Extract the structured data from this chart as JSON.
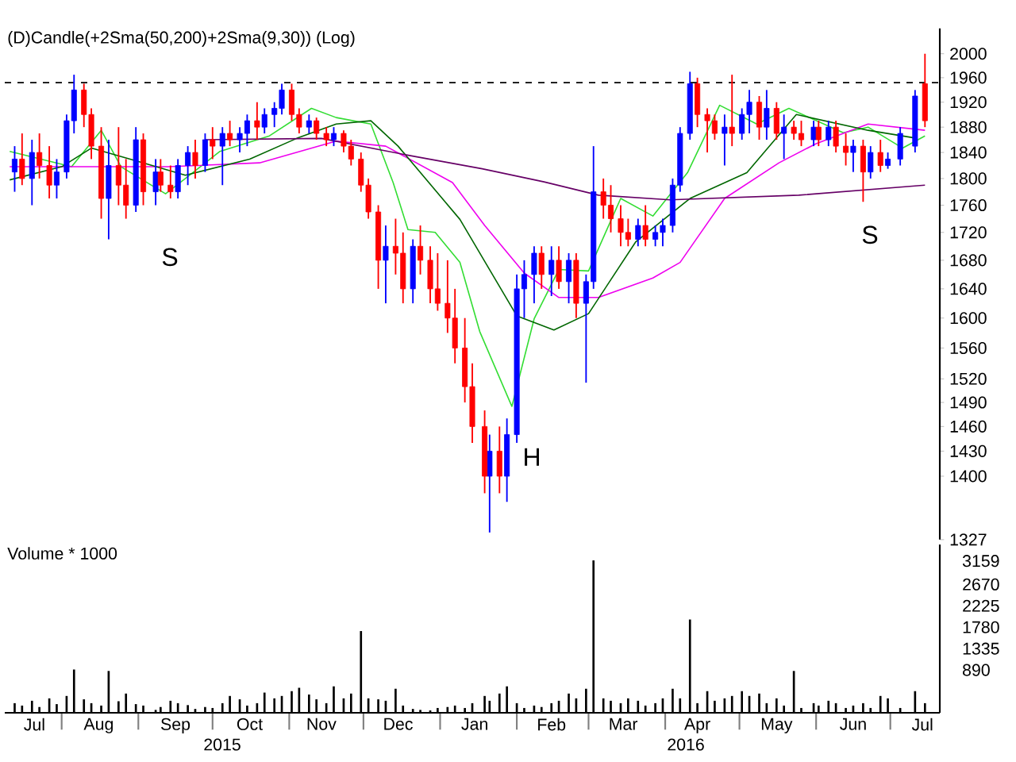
{
  "chart_data": [
    {
      "type": "candlestick",
      "title": "(D)Candle(+2Sma(50,200)+2Sma(9,30)) (Log)",
      "log": true,
      "tick_labels": "y",
      "xlim": [
        "2015-07-09",
        "2016-07-21"
      ],
      "ylim": [
        1327,
        2043
      ],
      "yticks": [
        1327,
        1400,
        1430,
        1460,
        1490,
        1520,
        1560,
        1600,
        1640,
        1680,
        1720,
        1760,
        1800,
        1840,
        1880,
        1920,
        1960,
        2000
      ],
      "ref_lines": [
        {
          "axis": "y",
          "value": 1952,
          "line_style": "dashed",
          "color": "#000000"
        }
      ],
      "annotations": [
        "S",
        "H",
        "S"
      ],
      "series": [
        {
          "type": "line",
          "color": "#33dd33",
          "x": [
            "2015-07-11",
            "2015-08-05",
            "2015-08-17",
            "2015-08-25",
            "2015-09-12",
            "2015-09-20",
            "2015-10-04",
            "2015-10-24",
            "2015-11-10",
            "2015-11-20",
            "2015-12-04",
            "2015-12-13",
            "2015-12-19",
            "2015-12-30",
            "2016-01-09",
            "2016-01-17",
            "2016-01-30",
            "2016-02-08",
            "2016-02-18",
            "2016-03-01",
            "2016-03-14",
            "2016-03-27",
            "2016-04-10",
            "2016-04-23",
            "2016-05-08",
            "2016-05-21",
            "2016-06-12",
            "2016-06-22",
            "2016-07-06",
            "2016-07-15"
          ],
          "values": [
            1842,
            1818,
            1875,
            1818,
            1777,
            1800,
            1842,
            1866,
            1910,
            1895,
            1885,
            1794,
            1724,
            1720,
            1677,
            1582,
            1485,
            1599,
            1667,
            1665,
            1770,
            1744,
            1809,
            1915,
            1885,
            1910,
            1871,
            1880,
            1847,
            1866
          ]
        },
        {
          "type": "line",
          "color": "#ee00ee",
          "x": [
            "2015-07-11",
            "2015-09-13",
            "2015-10-20",
            "2015-11-20",
            "2015-12-10",
            "2016-01-06",
            "2016-01-19",
            "2016-02-04",
            "2016-02-18",
            "2016-03-05",
            "2016-03-27",
            "2016-04-07",
            "2016-04-25",
            "2016-05-17",
            "2016-06-01",
            "2016-06-22",
            "2016-07-15"
          ],
          "values": [
            1818,
            1818,
            1824,
            1858,
            1850,
            1794,
            1730,
            1662,
            1628,
            1628,
            1655,
            1677,
            1770,
            1824,
            1854,
            1885,
            1875
          ]
        },
        {
          "type": "line",
          "color": "#006600",
          "x": [
            "2015-07-11",
            "2015-08-01",
            "2015-08-13",
            "2015-09-03",
            "2015-09-20",
            "2015-10-16",
            "2015-11-04",
            "2015-11-20",
            "2015-12-04",
            "2015-12-15",
            "2016-01-09",
            "2016-02-01",
            "2016-02-16",
            "2016-03-01",
            "2016-03-20",
            "2016-04-11",
            "2016-05-04",
            "2016-05-24",
            "2016-06-22",
            "2016-07-12"
          ],
          "values": [
            1798,
            1818,
            1847,
            1824,
            1805,
            1830,
            1862,
            1885,
            1890,
            1850,
            1739,
            1603,
            1584,
            1606,
            1706,
            1770,
            1809,
            1900,
            1875,
            1862
          ]
        },
        {
          "type": "line",
          "color": "#660066",
          "x": [
            "2015-09-28",
            "2015-11-14",
            "2015-12-20",
            "2016-01-18",
            "2016-02-12",
            "2016-03-05",
            "2016-04-03",
            "2016-05-25",
            "2016-07-15"
          ],
          "values": [
            1860,
            1862,
            1835,
            1815,
            1795,
            1775,
            1768,
            1775,
            1790
          ]
        },
        {
          "color": "#0000ff",
          "x": [
            "2015-07-13",
            "2015-07-20",
            "2015-07-30",
            "2015-08-03",
            "2015-08-06",
            "2015-08-20",
            "2015-08-31",
            "2015-09-08",
            "2015-09-17",
            "2015-09-21",
            "2015-09-28",
            "2015-10-05",
            "2015-10-12",
            "2015-10-15",
            "2015-10-22",
            "2015-10-26",
            "2015-10-29",
            "2015-11-09",
            "2015-11-19",
            "2015-12-10",
            "2015-12-21",
            "2016-01-21",
            "2016-01-28",
            "2016-02-01",
            "2016-02-04",
            "2016-02-08",
            "2016-02-15",
            "2016-02-22",
            "2016-02-29",
            "2016-03-03",
            "2016-03-21",
            "2016-03-28",
            "2016-03-31",
            "2016-04-04",
            "2016-04-07",
            "2016-04-11",
            "2016-04-25",
            "2016-05-02",
            "2016-05-05",
            "2016-05-12",
            "2016-05-19",
            "2016-05-31",
            "2016-06-06",
            "2016-06-16",
            "2016-06-23",
            "2016-06-30",
            "2016-07-05",
            "2016-07-11"
          ],
          "ohlc": [
            [
              1810,
              1850,
              1780,
              1830
            ],
            [
              1800,
              1860,
              1760,
              1840
            ],
            [
              1790,
              1830,
              1770,
              1810
            ],
            [
              1810,
              1900,
              1800,
              1890
            ],
            [
              1890,
              1965,
              1870,
              1940
            ],
            [
              1770,
              1860,
              1710,
              1820
            ],
            [
              1760,
              1880,
              1750,
              1860
            ],
            [
              1780,
              1830,
              1760,
              1810
            ],
            [
              1780,
              1830,
              1770,
              1820
            ],
            [
              1820,
              1850,
              1790,
              1840
            ],
            [
              1820,
              1870,
              1810,
              1860
            ],
            [
              1850,
              1880,
              1790,
              1870
            ],
            [
              1860,
              1880,
              1840,
              1870
            ],
            [
              1870,
              1900,
              1850,
              1890
            ],
            [
              1880,
              1910,
              1870,
              1900
            ],
            [
              1900,
              1920,
              1880,
              1910
            ],
            [
              1910,
              1950,
              1900,
              1940
            ],
            [
              1880,
              1900,
              1870,
              1890
            ],
            [
              1860,
              1880,
              1850,
              1870
            ],
            [
              1680,
              1730,
              1620,
              1700
            ],
            [
              1640,
              1710,
              1620,
              1700
            ],
            [
              1400,
              1450,
              1335,
              1430
            ],
            [
              1400,
              1470,
              1370,
              1450
            ],
            [
              1450,
              1660,
              1440,
              1640
            ],
            [
              1640,
              1680,
              1600,
              1660
            ],
            [
              1660,
              1700,
              1620,
              1690
            ],
            [
              1660,
              1700,
              1630,
              1680
            ],
            [
              1650,
              1690,
              1620,
              1680
            ],
            [
              1620,
              1660,
              1515,
              1650
            ],
            [
              1650,
              1850,
              1640,
              1780
            ],
            [
              1710,
              1740,
              1700,
              1730
            ],
            [
              1710,
              1730,
              1700,
              1720
            ],
            [
              1720,
              1740,
              1700,
              1730
            ],
            [
              1730,
              1800,
              1720,
              1790
            ],
            [
              1790,
              1880,
              1780,
              1870
            ],
            [
              1870,
              1970,
              1860,
              1950
            ],
            [
              1870,
              1900,
              1820,
              1880
            ],
            [
              1870,
              1910,
              1860,
              1900
            ],
            [
              1900,
              1940,
              1870,
              1920
            ],
            [
              1880,
              1940,
              1860,
              1910
            ],
            [
              1870,
              1900,
              1830,
              1880
            ],
            [
              1860,
              1890,
              1850,
              1880
            ],
            [
              1860,
              1890,
              1850,
              1880
            ],
            [
              1840,
              1860,
              1810,
              1850
            ],
            [
              1810,
              1850,
              1800,
              1840
            ],
            [
              1820,
              1840,
              1815,
              1830
            ],
            [
              1830,
              1880,
              1820,
              1870
            ],
            [
              1850,
              1940,
              1840,
              1930
            ]
          ]
        },
        {
          "color": "#ff0000",
          "x": [
            "2015-07-16",
            "2015-07-23",
            "2015-07-27",
            "2015-08-10",
            "2015-08-13",
            "2015-08-17",
            "2015-08-24",
            "2015-08-27",
            "2015-09-03",
            "2015-09-10",
            "2015-09-14",
            "2015-09-24",
            "2015-10-01",
            "2015-10-08",
            "2015-10-19",
            "2015-11-02",
            "2015-11-05",
            "2015-11-12",
            "2015-11-16",
            "2015-11-23",
            "2015-11-26",
            "2015-11-30",
            "2015-12-03",
            "2015-12-07",
            "2015-12-14",
            "2015-12-17",
            "2015-12-24",
            "2015-12-28",
            "2015-12-31",
            "2016-01-04",
            "2016-01-07",
            "2016-01-11",
            "2016-01-14",
            "2016-01-19",
            "2016-01-25",
            "2016-02-11",
            "2016-02-18",
            "2016-02-25",
            "2016-03-07",
            "2016-03-10",
            "2016-03-14",
            "2016-03-17",
            "2016-03-24",
            "2016-04-14",
            "2016-04-18",
            "2016-04-21",
            "2016-04-28",
            "2016-05-09",
            "2016-05-16",
            "2016-05-23",
            "2016-05-26",
            "2016-06-02",
            "2016-06-09",
            "2016-06-13",
            "2016-06-20",
            "2016-06-27",
            "2016-07-15"
          ],
          "ohlc": [
            [
              1830,
              1870,
              1790,
              1800
            ],
            [
              1840,
              1870,
              1800,
              1820
            ],
            [
              1820,
              1850,
              1770,
              1790
            ],
            [
              1940,
              1950,
              1880,
              1900
            ],
            [
              1900,
              1910,
              1830,
              1850
            ],
            [
              1850,
              1880,
              1740,
              1770
            ],
            [
              1820,
              1880,
              1760,
              1790
            ],
            [
              1790,
              1830,
              1740,
              1760
            ],
            [
              1860,
              1870,
              1760,
              1780
            ],
            [
              1810,
              1830,
              1780,
              1790
            ],
            [
              1790,
              1820,
              1770,
              1780
            ],
            [
              1840,
              1860,
              1800,
              1820
            ],
            [
              1860,
              1880,
              1830,
              1850
            ],
            [
              1870,
              1890,
              1850,
              1860
            ],
            [
              1890,
              1920,
              1860,
              1880
            ],
            [
              1940,
              1950,
              1890,
              1900
            ],
            [
              1900,
              1910,
              1870,
              1880
            ],
            [
              1890,
              1895,
              1860,
              1870
            ],
            [
              1870,
              1880,
              1850,
              1860
            ],
            [
              1870,
              1875,
              1840,
              1850
            ],
            [
              1850,
              1860,
              1820,
              1830
            ],
            [
              1830,
              1840,
              1780,
              1790
            ],
            [
              1790,
              1800,
              1740,
              1750
            ],
            [
              1750,
              1760,
              1640,
              1680
            ],
            [
              1700,
              1740,
              1660,
              1690
            ],
            [
              1690,
              1720,
              1620,
              1640
            ],
            [
              1700,
              1730,
              1660,
              1680
            ],
            [
              1680,
              1700,
              1620,
              1640
            ],
            [
              1640,
              1690,
              1610,
              1620
            ],
            [
              1620,
              1680,
              1580,
              1600
            ],
            [
              1600,
              1640,
              1540,
              1560
            ],
            [
              1560,
              1600,
              1490,
              1510
            ],
            [
              1510,
              1540,
              1440,
              1460
            ],
            [
              1460,
              1480,
              1380,
              1400
            ],
            [
              1430,
              1460,
              1380,
              1400
            ],
            [
              1690,
              1700,
              1640,
              1660
            ],
            [
              1680,
              1700,
              1640,
              1650
            ],
            [
              1680,
              1690,
              1600,
              1620
            ],
            [
              1780,
              1800,
              1740,
              1760
            ],
            [
              1760,
              1790,
              1720,
              1740
            ],
            [
              1740,
              1760,
              1700,
              1720
            ],
            [
              1720,
              1740,
              1700,
              1710
            ],
            [
              1730,
              1760,
              1700,
              1710
            ],
            [
              1950,
              1960,
              1880,
              1900
            ],
            [
              1900,
              1910,
              1840,
              1890
            ],
            [
              1890,
              1900,
              1860,
              1870
            ],
            [
              1880,
              1965,
              1850,
              1870
            ],
            [
              1920,
              1930,
              1860,
              1880
            ],
            [
              1910,
              1920,
              1860,
              1870
            ],
            [
              1880,
              1890,
              1860,
              1870
            ],
            [
              1870,
              1890,
              1850,
              1860
            ],
            [
              1880,
              1890,
              1850,
              1860
            ],
            [
              1880,
              1890,
              1840,
              1850
            ],
            [
              1850,
              1870,
              1820,
              1840
            ],
            [
              1850,
              1860,
              1765,
              1810
            ],
            [
              1840,
              1860,
              1810,
              1820
            ],
            [
              1950,
              2000,
              1880,
              1890
            ]
          ]
        }
      ]
    },
    {
      "type": "bar",
      "title": "Volume * 1000",
      "color": "#000000",
      "xlim": [
        "2015-07-09",
        "2016-07-21"
      ],
      "ylim": [
        0,
        3500
      ],
      "yticks": [
        890,
        1335,
        1780,
        2225,
        2670,
        3159
      ],
      "xticks": [
        {
          "value": "2015-08-01",
          "label": null
        },
        {
          "value": "2015-09-01",
          "label": null
        },
        {
          "value": "2015-10-01",
          "label": null
        },
        {
          "value": "2015-11-01",
          "label": null
        },
        {
          "value": "2015-12-01",
          "label": null
        },
        {
          "value": "2016-01-01",
          "label": null
        },
        {
          "value": "2016-02-01",
          "label": null
        },
        {
          "value": "2016-03-01",
          "label": null
        },
        {
          "value": "2016-04-01",
          "label": null
        },
        {
          "value": "2016-05-01",
          "label": null
        },
        {
          "value": "2016-06-01",
          "label": null
        },
        {
          "value": "2016-07-01",
          "label": null
        },
        {
          "value": "2015-07-21",
          "label": "Jul"
        },
        {
          "value": "2015-08-16",
          "label": "Aug"
        },
        {
          "value": "2015-09-16",
          "label": "Sep"
        },
        {
          "value": "2015-10-16",
          "label": "Oct"
        },
        {
          "value": "2015-11-14",
          "label": "Nov"
        },
        {
          "value": "2015-12-15",
          "label": "Dec"
        },
        {
          "value": "2016-01-15",
          "label": "Jan"
        },
        {
          "value": "2016-02-15",
          "label": "Feb"
        },
        {
          "value": "2016-03-15",
          "label": "Mar"
        },
        {
          "value": "2016-04-14",
          "label": "Apr"
        },
        {
          "value": "2016-05-16",
          "label": "May"
        },
        {
          "value": "2016-06-16",
          "label": "Jun"
        },
        {
          "value": "2016-07-14",
          "label": "Jul"
        }
      ],
      "annotations": [
        "2015",
        "2016"
      ],
      "x": [
        "2015-07-13",
        "2015-07-16",
        "2015-07-20",
        "2015-07-23",
        "2015-07-27",
        "2015-07-30",
        "2015-08-03",
        "2015-08-06",
        "2015-08-10",
        "2015-08-13",
        "2015-08-17",
        "2015-08-20",
        "2015-08-24",
        "2015-08-27",
        "2015-08-31",
        "2015-09-03",
        "2015-09-08",
        "2015-09-10",
        "2015-09-14",
        "2015-09-17",
        "2015-09-21",
        "2015-09-24",
        "2015-09-28",
        "2015-10-01",
        "2015-10-05",
        "2015-10-08",
        "2015-10-12",
        "2015-10-15",
        "2015-10-19",
        "2015-10-22",
        "2015-10-26",
        "2015-10-29",
        "2015-11-02",
        "2015-11-05",
        "2015-11-09",
        "2015-11-12",
        "2015-11-16",
        "2015-11-19",
        "2015-11-23",
        "2015-11-26",
        "2015-11-30",
        "2015-12-03",
        "2015-12-07",
        "2015-12-10",
        "2015-12-14",
        "2015-12-17",
        "2015-12-21",
        "2015-12-24",
        "2015-12-28",
        "2015-12-31",
        "2016-01-04",
        "2016-01-07",
        "2016-01-11",
        "2016-01-14",
        "2016-01-19",
        "2016-01-21",
        "2016-01-25",
        "2016-01-28",
        "2016-02-01",
        "2016-02-04",
        "2016-02-08",
        "2016-02-11",
        "2016-02-15",
        "2016-02-18",
        "2016-02-22",
        "2016-02-25",
        "2016-02-29",
        "2016-03-03",
        "2016-03-07",
        "2016-03-10",
        "2016-03-14",
        "2016-03-17",
        "2016-03-21",
        "2016-03-24",
        "2016-03-28",
        "2016-03-31",
        "2016-04-04",
        "2016-04-07",
        "2016-04-11",
        "2016-04-14",
        "2016-04-18",
        "2016-04-21",
        "2016-04-25",
        "2016-04-28",
        "2016-05-02",
        "2016-05-05",
        "2016-05-09",
        "2016-05-12",
        "2016-05-16",
        "2016-05-19",
        "2016-05-23",
        "2016-05-26",
        "2016-05-31",
        "2016-06-02",
        "2016-06-06",
        "2016-06-09",
        "2016-06-13",
        "2016-06-16",
        "2016-06-20",
        "2016-06-23",
        "2016-06-27",
        "2016-06-30",
        "2016-07-05",
        "2016-07-11",
        "2016-07-15"
      ],
      "values": [
        200,
        150,
        250,
        120,
        300,
        180,
        350,
        900,
        280,
        200,
        150,
        870,
        240,
        400,
        180,
        150,
        60,
        120,
        250,
        200,
        160,
        80,
        120,
        100,
        200,
        350,
        280,
        150,
        200,
        420,
        300,
        350,
        450,
        520,
        380,
        280,
        200,
        550,
        300,
        400,
        1700,
        300,
        280,
        250,
        500,
        150,
        80,
        60,
        50,
        100,
        120,
        150,
        100,
        200,
        350,
        250,
        400,
        550,
        200,
        100,
        150,
        120,
        200,
        250,
        400,
        300,
        500,
        3170,
        300,
        250,
        200,
        300,
        250,
        150,
        200,
        300,
        500,
        300,
        1940,
        200,
        450,
        250,
        300,
        350,
        450,
        350,
        400,
        200,
        300,
        150,
        870,
        100,
        200,
        150,
        250,
        200,
        100,
        150,
        200,
        100,
        350,
        300,
        100,
        450,
        200
      ]
    }
  ]
}
